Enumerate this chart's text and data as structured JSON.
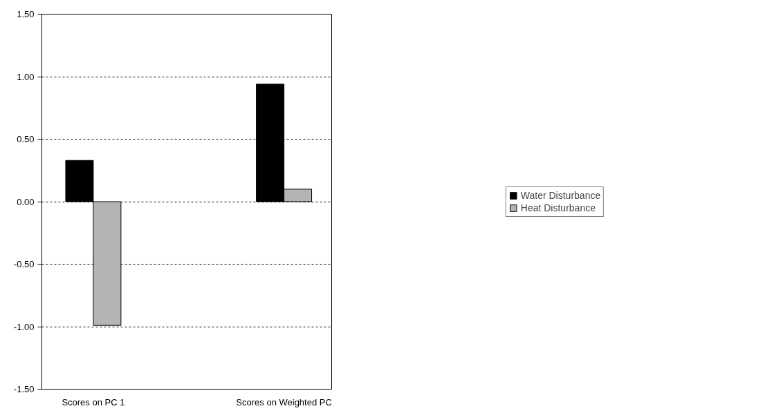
{
  "chart_data": {
    "type": "bar",
    "categories": [
      "Scores on PC 1",
      "Scores on Weighted PC"
    ],
    "series": [
      {
        "name": "Water Disturbance",
        "color": "#000000",
        "values": [
          0.33,
          0.94
        ]
      },
      {
        "name": "Heat Disturbance",
        "color": "#b4b4b4",
        "values": [
          -0.99,
          0.1
        ]
      }
    ],
    "ylim": [
      -1.5,
      1.5
    ],
    "yticks": [
      {
        "value": -1.5,
        "label": "-1.50"
      },
      {
        "value": -1.0,
        "label": "-1.00"
      },
      {
        "value": -0.5,
        "label": "-0.50"
      },
      {
        "value": 0,
        "label": "0.00"
      },
      {
        "value": 0.5,
        "label": "0.50"
      },
      {
        "value": 1.0,
        "label": "1.00"
      },
      {
        "value": 1.5,
        "label": "1.50"
      }
    ],
    "grid": "y",
    "legend": "right"
  }
}
